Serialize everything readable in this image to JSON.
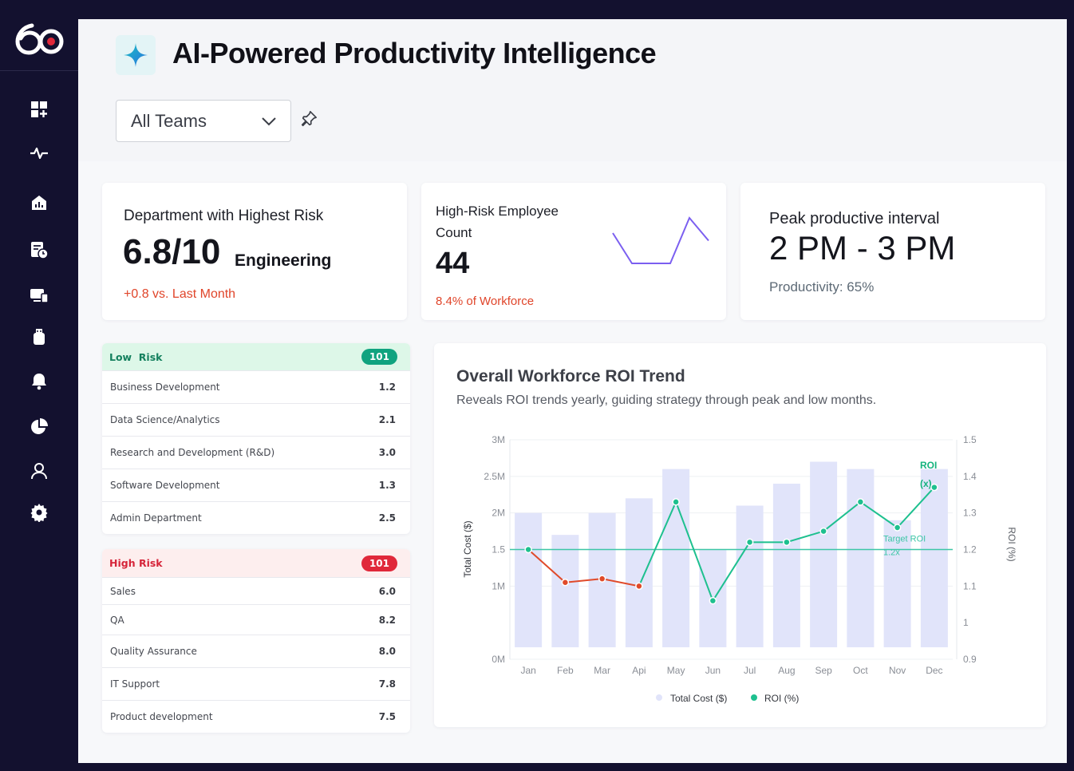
{
  "app": {
    "logo_text": "60"
  },
  "header": {
    "title": "AI-Powered Productivity Intelligence"
  },
  "team_filter": {
    "selected": "All Teams"
  },
  "kpis": {
    "highest_risk": {
      "title": "Department with Highest Risk",
      "score": "6.8/10",
      "department": "Engineering",
      "delta": "+0.8 vs. Last Month"
    },
    "high_risk_count": {
      "title_line1": "High-Risk Employee",
      "title_line2": "Count",
      "value": "44",
      "pct": "8.4% of Workforce",
      "sparkline": [
        3,
        1,
        1,
        1,
        4,
        2.5
      ]
    },
    "peak_interval": {
      "title": "Peak productive interval",
      "value": "2 PM - 3 PM",
      "productivity": "Productivity: 65%"
    }
  },
  "low_risk": {
    "label": "Low  Risk",
    "count": "101",
    "rows": [
      {
        "name": "Business Development",
        "score": "1.2"
      },
      {
        "name": "Data Science/Analytics",
        "score": "2.1"
      },
      {
        "name": "Research and Development (R&D)",
        "score": "3.0"
      },
      {
        "name": "Software Development",
        "score": "1.3"
      },
      {
        "name": "Admin Department",
        "score": "2.5"
      }
    ]
  },
  "high_risk": {
    "label": "High Risk",
    "count": "101",
    "rows": [
      {
        "name": "Sales",
        "score": "6.0"
      },
      {
        "name": "QA",
        "score": "8.2"
      },
      {
        "name": "Quality Assurance",
        "score": "8.0"
      },
      {
        "name": "IT Support",
        "score": "7.8"
      },
      {
        "name": "Product development",
        "score": "7.5"
      }
    ]
  },
  "colors": {
    "bar": "#e1e4fa",
    "roi_up": "#1ec08f",
    "roi_down": "#e04a2a",
    "target": "#3cc6a6"
  },
  "chart_data": {
    "type": "bar+line",
    "title": "Overall Workforce ROI Trend",
    "subtitle": "Reveals ROI trends yearly, guiding strategy through peak and low months.",
    "categories": [
      "Jan",
      "Feb",
      "Mar",
      "Api",
      "May",
      "Jun",
      "Jul",
      "Aug",
      "Sep",
      "Oct",
      "Nov",
      "Dec"
    ],
    "series": [
      {
        "name": "Total Cost ($)",
        "axis": "left",
        "kind": "bar",
        "values": [
          2.0,
          1.7,
          2.0,
          2.2,
          2.6,
          1.5,
          2.1,
          2.4,
          2.7,
          2.6,
          1.9,
          2.6
        ]
      },
      {
        "name": "ROI (%)",
        "axis": "right",
        "kind": "line",
        "values": [
          1.2,
          1.11,
          1.12,
          1.1,
          1.33,
          1.06,
          1.22,
          1.22,
          1.25,
          1.33,
          1.26,
          1.37
        ]
      }
    ],
    "left_axis": {
      "label": "Total Cost  ($)",
      "ticks": [
        "0M",
        "1M",
        "1.5",
        "2M",
        "2.5M",
        "3M"
      ],
      "ylim": [
        0,
        3
      ]
    },
    "right_axis": {
      "label": "ROI (%)",
      "ticks": [
        "0.9",
        "1",
        "1.1",
        "1.2",
        "1.3",
        "1.4",
        "1.5"
      ],
      "ylim": [
        0.9,
        1.5
      ]
    },
    "target": {
      "label_line1": "Target ROI",
      "label_line2": "1.2x",
      "value": 1.2
    },
    "roi_annotation": {
      "line1": "ROI",
      "line2": "(x)"
    },
    "legend": [
      {
        "label": "Total Cost ($)"
      },
      {
        "label": "ROI (%)"
      }
    ]
  }
}
